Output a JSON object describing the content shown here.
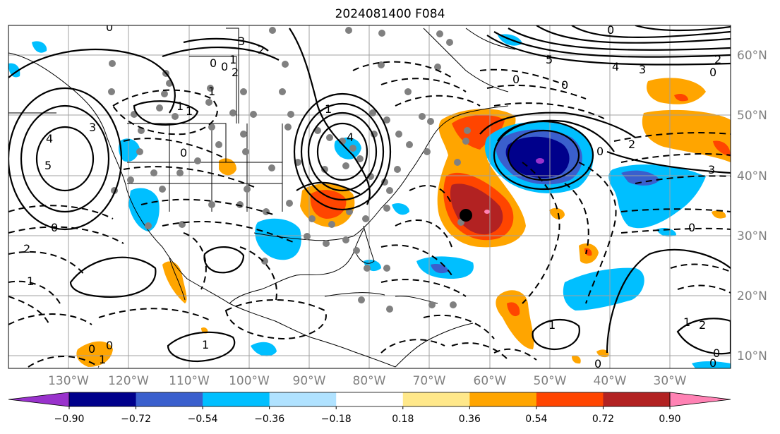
{
  "title": "2024081400 F084",
  "map": {
    "lon_labels": [
      "130°W",
      "120°W",
      "110°W",
      "100°W",
      "90°W",
      "80°W",
      "70°W",
      "60°W",
      "50°W",
      "40°W",
      "30°W"
    ],
    "lat_labels": [
      "60°N",
      "50°N",
      "40°N",
      "30°N",
      "20°N",
      "10°N"
    ],
    "contour_labels": [
      "0",
      "3",
      "2",
      "1",
      "0",
      "2",
      "0",
      "1",
      "5",
      "4",
      "3",
      "0",
      "1",
      "0",
      "4",
      "5",
      "4",
      "3",
      "0",
      "0",
      "0",
      "0",
      "2",
      "3",
      "0",
      "1",
      "1",
      "0",
      "2",
      "0",
      "1",
      "0",
      "1",
      "1",
      "2",
      "0",
      "1",
      "0",
      "2",
      "1",
      "0"
    ]
  },
  "colorbar": {
    "tick_labels": [
      "−0.90",
      "−0.72",
      "−0.54",
      "−0.36",
      "−0.18",
      "0.18",
      "0.36",
      "0.54",
      "0.72",
      "0.90"
    ],
    "colors": [
      "#9932cc",
      "#00008b",
      "#3a5fcd",
      "#00bfff",
      "#b0e2ff",
      "#ffffff",
      "#ffe88a",
      "#ffa500",
      "#ff4500",
      "#b22222",
      "#ff82b4"
    ]
  },
  "colors": {
    "pos_light": "#ffa500",
    "pos_med": "#ff4500",
    "pos_strong": "#b22222",
    "pos_max": "#ff82b4",
    "neg_light": "#00bfff",
    "neg_med": "#3a5fcd",
    "neg_strong": "#00008b",
    "neg_max": "#9932cc",
    "dots": "#808080"
  }
}
